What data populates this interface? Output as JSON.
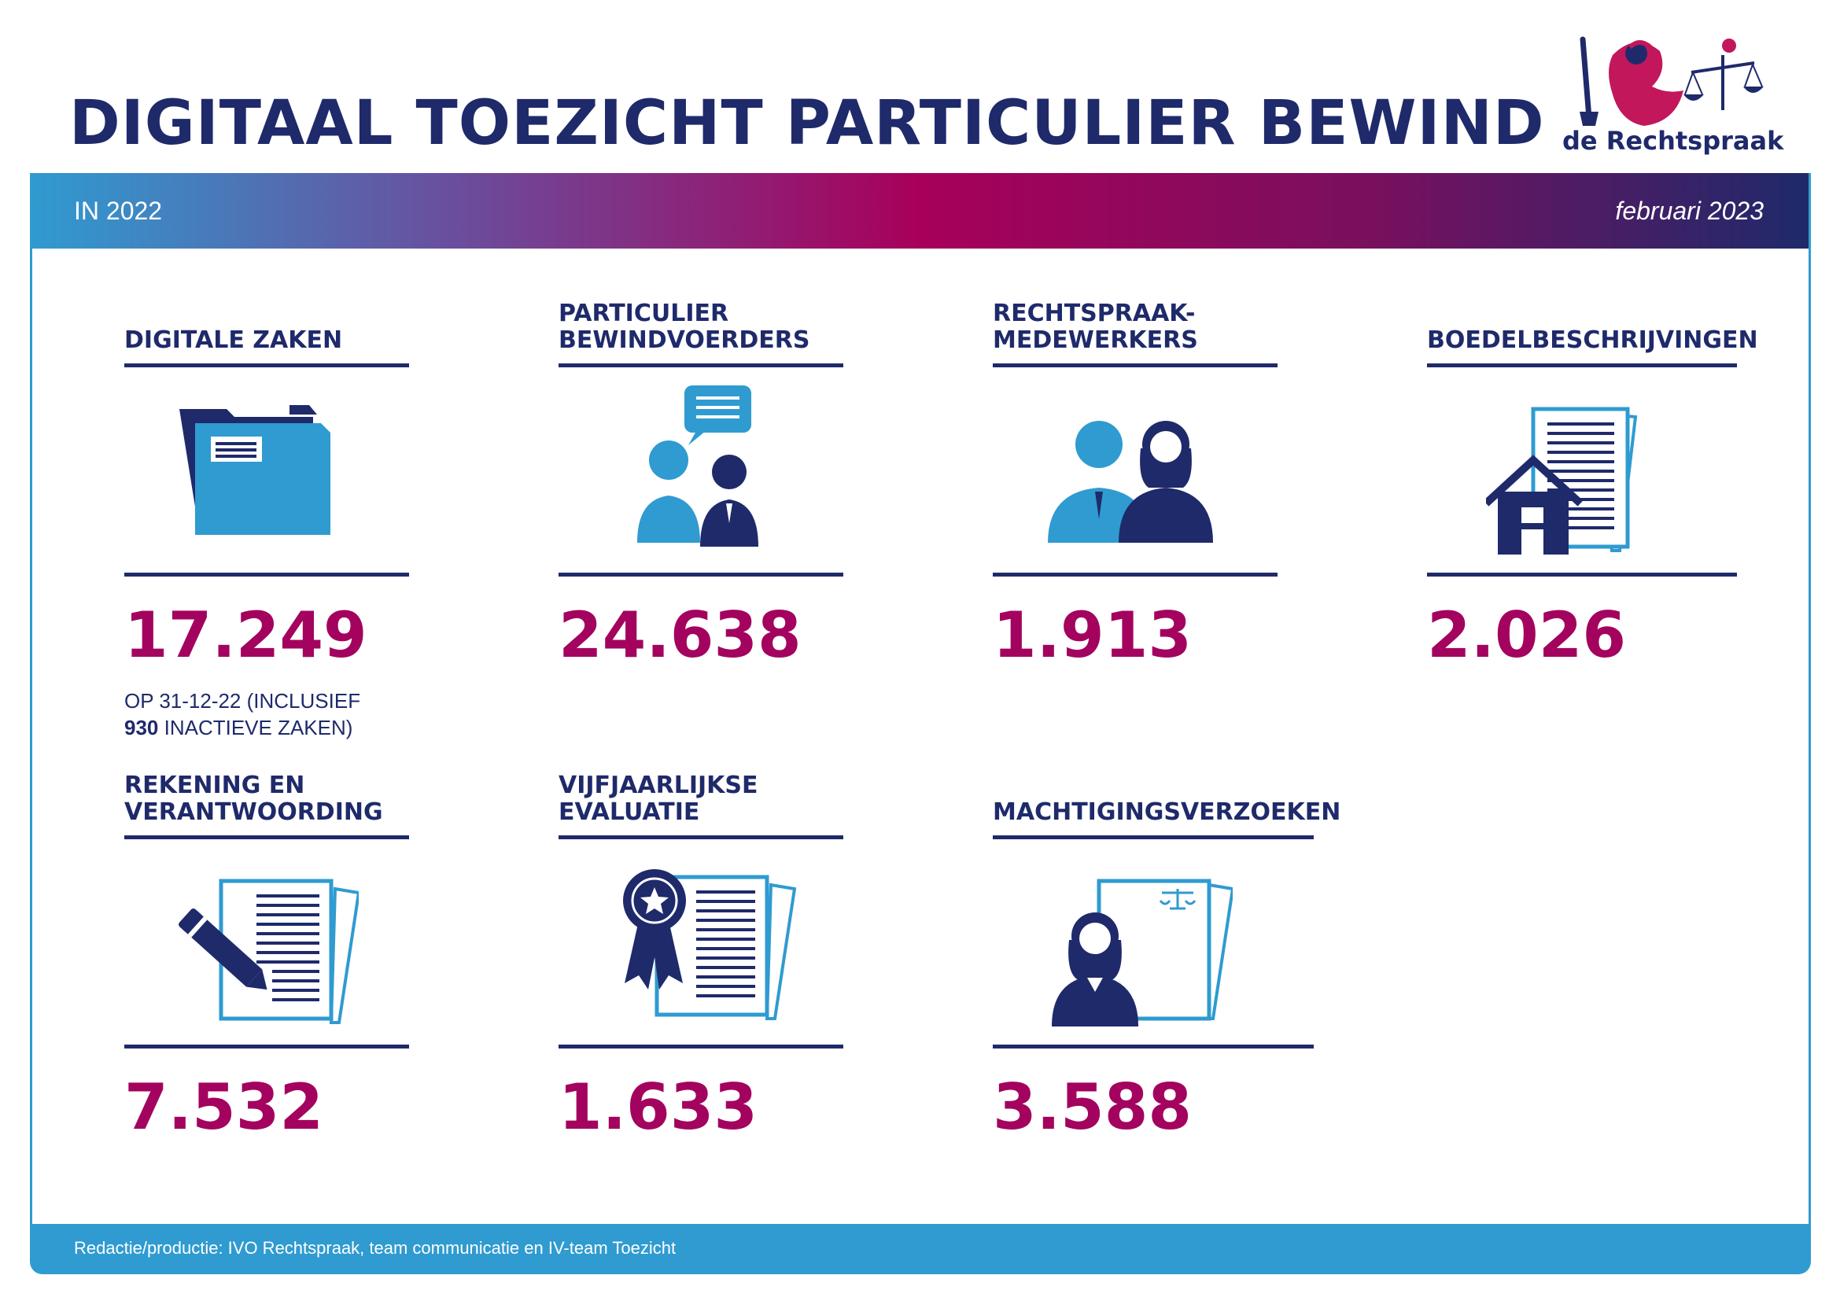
{
  "header": {
    "title": "DIGITAAL TOEZICHT PARTICULIER BEWIND",
    "logo_text": "de Rechtspraak"
  },
  "banner": {
    "left": "IN 2022",
    "right": "februari 2023"
  },
  "stats": [
    {
      "label": "DIGITALE ZAKEN",
      "value": "17.249",
      "icon": "folder-icon",
      "note_line1": "OP 31-12-22 (INCLUSIEF",
      "note_bold": "930",
      "note_line2_rest": " INACTIEVE ZAKEN)"
    },
    {
      "label_line1": "PARTICULIER",
      "label_line2": "BEWINDVOERDERS",
      "value": "24.638",
      "icon": "people-chat-icon"
    },
    {
      "label_line1": "RECHTSPRAAK-",
      "label_line2": "MEDEWERKERS",
      "value": "1.913",
      "icon": "staff-icon"
    },
    {
      "label": "BOEDELBESCHRIJVINGEN",
      "value": "2.026",
      "icon": "house-document-icon"
    },
    {
      "label_line1": "REKENING EN",
      "label_line2": "VERANTWOORDING",
      "value": "7.532",
      "icon": "pencil-document-icon"
    },
    {
      "label_line1": "VIJFJAARLIJKSE",
      "label_line2": "EVALUATIE",
      "value": "1.633",
      "icon": "award-document-icon"
    },
    {
      "label": "MACHTIGINGSVERZOEKEN",
      "value": "3.588",
      "icon": "woman-scales-document-icon"
    }
  ],
  "footer": {
    "text": "Redactie/productie: IVO Rechtspraak, team communicatie en IV-team Toezicht"
  },
  "colors": {
    "navy": "#1f2a6b",
    "blue": "#2f9bd0",
    "magenta": "#a3035e"
  }
}
